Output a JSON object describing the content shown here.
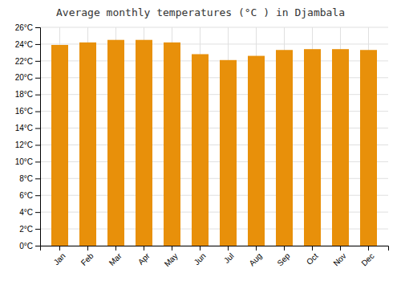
{
  "chart_data": {
    "type": "bar",
    "title": "Average monthly temperatures (°C ) in Djambala",
    "categories": [
      "Jan",
      "Feb",
      "Mar",
      "Apr",
      "May",
      "Jun",
      "Jul",
      "Aug",
      "Sep",
      "Oct",
      "Nov",
      "Dec"
    ],
    "values": [
      23.9,
      24.2,
      24.5,
      24.5,
      24.2,
      22.8,
      22.1,
      22.6,
      23.3,
      23.4,
      23.4,
      23.3
    ],
    "color": "#E8900A",
    "ylim": [
      0,
      26
    ],
    "yticks": [
      {
        "value": 0,
        "label": "0°C"
      },
      {
        "value": 2,
        "label": "2°C"
      },
      {
        "value": 4,
        "label": "4°C"
      },
      {
        "value": 6,
        "label": "6°C"
      },
      {
        "value": 8,
        "label": "8°C"
      },
      {
        "value": 10,
        "label": "10°C"
      },
      {
        "value": 12,
        "label": "12°C"
      },
      {
        "value": 14,
        "label": "14°C"
      },
      {
        "value": 16,
        "label": "16°C"
      },
      {
        "value": 18,
        "label": "18°C"
      },
      {
        "value": 20,
        "label": "20°C"
      },
      {
        "value": 22,
        "label": "22°C"
      },
      {
        "value": 24,
        "label": "24°C"
      },
      {
        "value": 26,
        "label": "26°C"
      }
    ],
    "grid": true
  }
}
